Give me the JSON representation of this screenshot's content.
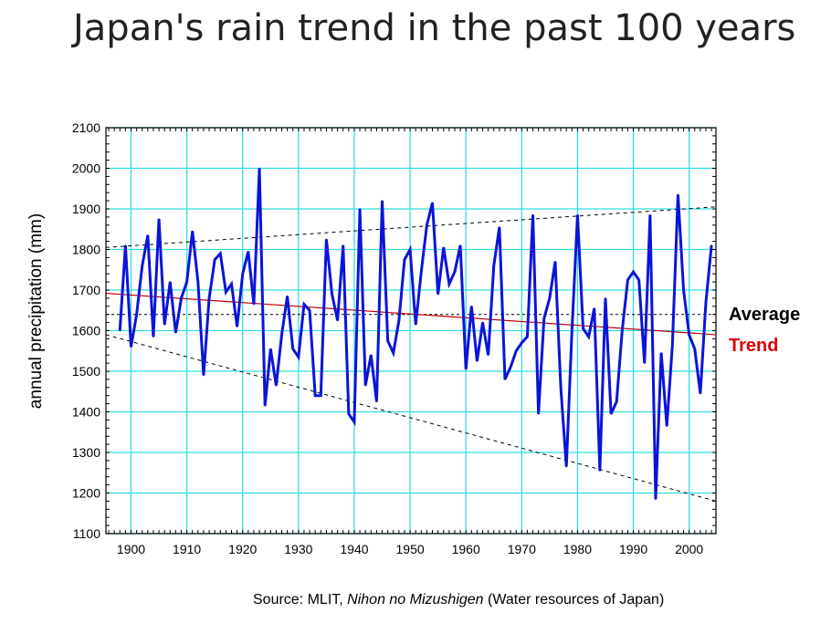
{
  "chart_data": {
    "type": "line",
    "title": "Japan's rain trend in the past 100 years",
    "xlabel": "",
    "ylabel": "annual precipitation (mm)",
    "xlim": [
      1895.5,
      2004.8
    ],
    "ylim": [
      1100,
      2100
    ],
    "xticks": [
      1900,
      1910,
      1920,
      1930,
      1940,
      1950,
      1960,
      1970,
      1980,
      1990,
      2000
    ],
    "yticks": [
      1100,
      1200,
      1300,
      1400,
      1500,
      1600,
      1700,
      1800,
      1900,
      2000,
      2100
    ],
    "grid": true,
    "colors": {
      "series": "#0a14d8",
      "grid": "#33dede",
      "trend": "#c00000",
      "average": "#000000",
      "envelope": "#000000"
    },
    "x_start": 1898,
    "series": [
      {
        "values": [
          1600,
          1810,
          1560,
          1640,
          1760,
          1835,
          1585,
          1875,
          1615,
          1720,
          1595,
          1680,
          1720,
          1845,
          1720,
          1490,
          1680,
          1775,
          1790,
          1695,
          1715,
          1610,
          1740,
          1795,
          1665,
          2000,
          1415,
          1555,
          1465,
          1590,
          1685,
          1555,
          1535,
          1665,
          1650,
          1440,
          1440,
          1825,
          1690,
          1625,
          1810,
          1395,
          1375,
          1900,
          1465,
          1540,
          1425,
          1920,
          1575,
          1545,
          1625,
          1775,
          1800,
          1615,
          1745,
          1860,
          1915,
          1690,
          1805,
          1715,
          1745,
          1810,
          1505,
          1660,
          1525,
          1620,
          1540,
          1760,
          1855,
          1480,
          1510,
          1550,
          1570,
          1585,
          1885,
          1395,
          1630,
          1680,
          1770,
          1460,
          1265,
          1600,
          1885,
          1605,
          1585,
          1655,
          1255,
          1680,
          1395,
          1425,
          1600,
          1725,
          1745,
          1725,
          1520,
          1885,
          1185,
          1545,
          1365,
          1565,
          1935,
          1700,
          1590,
          1555,
          1445,
          1670,
          1810
        ]
      }
    ],
    "average": 1640,
    "trend_line": {
      "start": [
        1895.5,
        1692
      ],
      "end": [
        2004.8,
        1590
      ]
    },
    "upper_envelope": {
      "start": [
        1895.5,
        1805
      ],
      "end": [
        2004.8,
        1905
      ]
    },
    "lower_envelope": {
      "start": [
        1895.5,
        1590
      ],
      "end": [
        2004.8,
        1180
      ]
    },
    "annotations": {
      "average": "Average",
      "trend": "Trend"
    },
    "source_prefix": "Source: MLIT, ",
    "source_italic": "Nihon no Mizushigen",
    "source_suffix": " (Water resources of Japan)"
  }
}
